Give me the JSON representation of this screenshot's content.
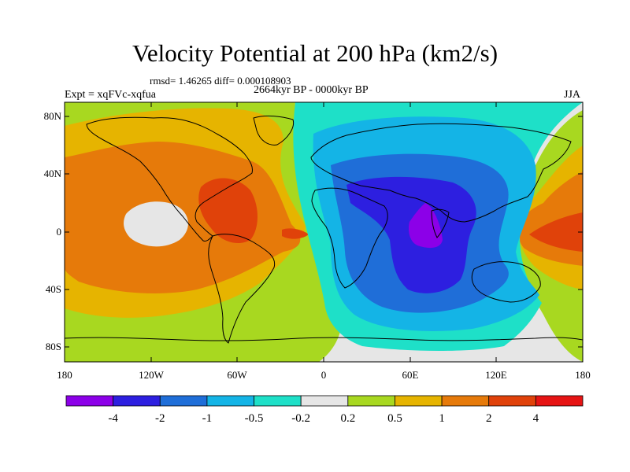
{
  "header": {
    "title": "Velocity Potential at 200 hPa (km2/s)",
    "stats": "rmsd= 1.46265 diff= 0.000108903",
    "period": "2664kyr BP - 0000kyr BP",
    "experiment": "Expt = xqFVc-xqfua",
    "season": "JJA"
  },
  "axes": {
    "y_ticks": [
      "80N",
      "40N",
      "0",
      "40S",
      "80S"
    ],
    "x_ticks": [
      "180",
      "120W",
      "60W",
      "0",
      "60E",
      "120E",
      "180"
    ]
  },
  "colorbar": {
    "labels": [
      "-4",
      "-2",
      "-1",
      "-0.5",
      "-0.2",
      "0.2",
      "0.5",
      "1",
      "2",
      "4"
    ],
    "colors": [
      "#8c00e8",
      "#2d1fe0",
      "#1f6ed8",
      "#14b4e6",
      "#1ee0c8",
      "#e6e6e6",
      "#a8d820",
      "#e6b400",
      "#e67a0a",
      "#e0420a",
      "#e61414"
    ]
  },
  "map": {
    "ocean_color": "#e6e6e6",
    "field": "velocity potential anomaly, negative centre over the Arabian Sea / Indian Ocean, positive over the eastern Pacific and western Pacific"
  }
}
